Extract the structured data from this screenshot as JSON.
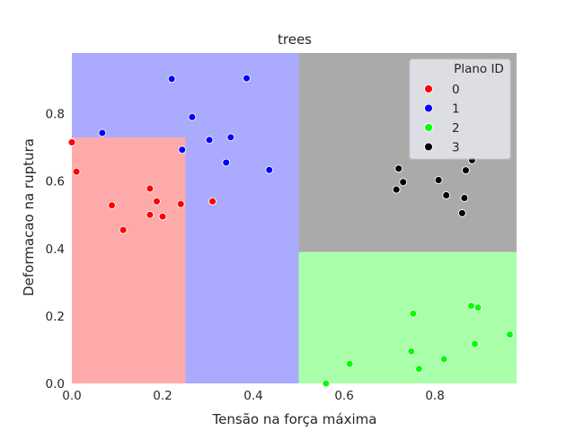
{
  "chart_data": {
    "type": "scatter",
    "title": "trees",
    "xlabel": "Tensão na força máxima",
    "ylabel": "Deformacao na ruptura",
    "xlim": [
      0.0,
      0.98
    ],
    "ylim": [
      0.0,
      0.98
    ],
    "xticks": [
      "0.0",
      "0.2",
      "0.4",
      "0.6",
      "0.8"
    ],
    "yticks": [
      "0.0",
      "0.2",
      "0.4",
      "0.6",
      "0.8"
    ],
    "grid": false,
    "legend": {
      "title": "Plano ID",
      "placement": "top-right"
    },
    "regions": [
      {
        "class": "0",
        "x": [
          0.0,
          0.25
        ],
        "y": [
          0.0,
          0.73
        ],
        "color": "#ffaaaa"
      },
      {
        "class": "1",
        "x": [
          0.0,
          0.5
        ],
        "y": [
          0.73,
          0.98
        ],
        "color": "#aaaaff"
      },
      {
        "class": "1",
        "x": [
          0.25,
          0.5
        ],
        "y": [
          0.0,
          0.73
        ],
        "color": "#aaaaff"
      },
      {
        "class": "3",
        "x": [
          0.5,
          0.98
        ],
        "y": [
          0.39,
          0.98
        ],
        "color": "#aaaaaa"
      },
      {
        "class": "2",
        "x": [
          0.5,
          0.98
        ],
        "y": [
          0.0,
          0.39
        ],
        "color": "#aaffaa"
      }
    ],
    "series": [
      {
        "name": "0",
        "color": "#ff0000",
        "points": [
          [
            0.0,
            0.715
          ],
          [
            0.01,
            0.628
          ],
          [
            0.088,
            0.528
          ],
          [
            0.113,
            0.455
          ],
          [
            0.172,
            0.578
          ],
          [
            0.172,
            0.5
          ],
          [
            0.187,
            0.54
          ],
          [
            0.2,
            0.495
          ],
          [
            0.24,
            0.532
          ],
          [
            0.31,
            0.54
          ]
        ]
      },
      {
        "name": "1",
        "color": "#0000ff",
        "points": [
          [
            0.067,
            0.743
          ],
          [
            0.22,
            0.903
          ],
          [
            0.243,
            0.693
          ],
          [
            0.265,
            0.79
          ],
          [
            0.303,
            0.722
          ],
          [
            0.34,
            0.655
          ],
          [
            0.35,
            0.73
          ],
          [
            0.385,
            0.905
          ],
          [
            0.435,
            0.633
          ]
        ]
      },
      {
        "name": "2",
        "color": "#00ff00",
        "points": [
          [
            0.56,
            0.0
          ],
          [
            0.612,
            0.058
          ],
          [
            0.748,
            0.095
          ],
          [
            0.752,
            0.207
          ],
          [
            0.765,
            0.043
          ],
          [
            0.82,
            0.072
          ],
          [
            0.88,
            0.23
          ],
          [
            0.888,
            0.117
          ],
          [
            0.895,
            0.225
          ],
          [
            0.965,
            0.145
          ]
        ]
      },
      {
        "name": "3",
        "color": "#000000",
        "points": [
          [
            0.715,
            0.575
          ],
          [
            0.72,
            0.637
          ],
          [
            0.73,
            0.597
          ],
          [
            0.808,
            0.603
          ],
          [
            0.825,
            0.558
          ],
          [
            0.86,
            0.505
          ],
          [
            0.865,
            0.55
          ],
          [
            0.868,
            0.632
          ],
          [
            0.882,
            0.662
          ]
        ]
      }
    ]
  }
}
